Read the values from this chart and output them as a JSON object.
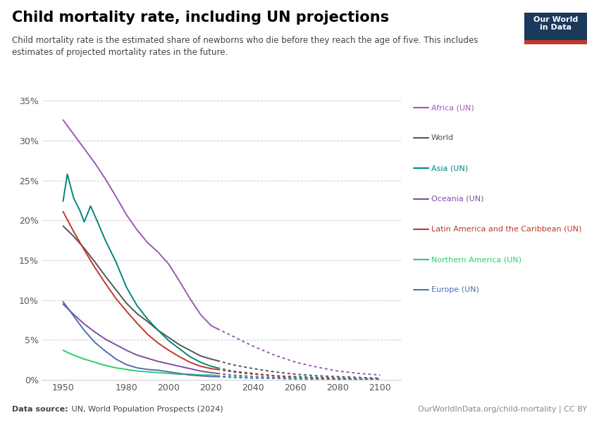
{
  "title": "Child mortality rate, including UN projections",
  "subtitle": "Child mortality rate is the estimated share of newborns who die before they reach the age of five. This includes\nestimates of projected mortality rates in the future.",
  "datasource": "Data source: UN, World Population Prospects (2024)",
  "url": "OurWorldInData.org/child-mortality | CC BY",
  "ylim": [
    0,
    0.36
  ],
  "yticks": [
    0.0,
    0.05,
    0.1,
    0.15,
    0.2,
    0.25,
    0.3,
    0.35
  ],
  "ytick_labels": [
    "0%",
    "5%",
    "10%",
    "15%",
    "20%",
    "25%",
    "30%",
    "35%"
  ],
  "xlim": [
    1940,
    2110
  ],
  "xticks": [
    1950,
    1980,
    2000,
    2020,
    2040,
    2060,
    2080,
    2100
  ],
  "series": [
    {
      "label": "Africa (UN)",
      "color": "#9b59b6",
      "historical": {
        "years": [
          1950,
          1955,
          1960,
          1965,
          1970,
          1975,
          1980,
          1985,
          1990,
          1995,
          2000,
          2005,
          2010,
          2015,
          2020,
          2023
        ],
        "values": [
          0.326,
          0.308,
          0.29,
          0.272,
          0.252,
          0.23,
          0.207,
          0.188,
          0.172,
          0.16,
          0.145,
          0.124,
          0.102,
          0.082,
          0.068,
          0.064
        ]
      },
      "projected": {
        "years": [
          2023,
          2030,
          2040,
          2050,
          2060,
          2070,
          2080,
          2090,
          2100
        ],
        "values": [
          0.064,
          0.055,
          0.042,
          0.031,
          0.022,
          0.016,
          0.011,
          0.008,
          0.006
        ]
      }
    },
    {
      "label": "World",
      "color": "#555555",
      "historical": {
        "years": [
          1950,
          1955,
          1960,
          1965,
          1970,
          1975,
          1980,
          1985,
          1990,
          1995,
          2000,
          2005,
          2010,
          2015,
          2020,
          2023
        ],
        "values": [
          0.193,
          0.18,
          0.165,
          0.148,
          0.13,
          0.113,
          0.096,
          0.083,
          0.073,
          0.062,
          0.053,
          0.044,
          0.037,
          0.03,
          0.026,
          0.024
        ]
      },
      "projected": {
        "years": [
          2023,
          2030,
          2040,
          2050,
          2060,
          2070,
          2080,
          2090,
          2100
        ],
        "values": [
          0.024,
          0.019,
          0.014,
          0.01,
          0.007,
          0.005,
          0.004,
          0.003,
          0.002
        ]
      }
    },
    {
      "label": "Asia (UN)",
      "color": "#00857a",
      "historical": {
        "years": [
          1950,
          1952,
          1955,
          1958,
          1960,
          1963,
          1966,
          1970,
          1975,
          1980,
          1985,
          1990,
          1995,
          2000,
          2005,
          2010,
          2015,
          2020,
          2023
        ],
        "values": [
          0.224,
          0.258,
          0.228,
          0.212,
          0.198,
          0.218,
          0.2,
          0.175,
          0.148,
          0.116,
          0.093,
          0.076,
          0.062,
          0.049,
          0.039,
          0.029,
          0.022,
          0.017,
          0.015
        ]
      },
      "projected": {
        "years": [
          2023,
          2030,
          2040,
          2050,
          2060,
          2070,
          2080,
          2090,
          2100
        ],
        "values": [
          0.015,
          0.011,
          0.008,
          0.005,
          0.004,
          0.003,
          0.002,
          0.001,
          0.001
        ]
      }
    },
    {
      "label": "Oceania (UN)",
      "color": "#7b4fa6",
      "historical": {
        "years": [
          1950,
          1955,
          1960,
          1965,
          1970,
          1975,
          1980,
          1985,
          1990,
          1995,
          2000,
          2005,
          2010,
          2015,
          2020,
          2023
        ],
        "values": [
          0.095,
          0.082,
          0.07,
          0.06,
          0.051,
          0.044,
          0.037,
          0.031,
          0.027,
          0.023,
          0.02,
          0.017,
          0.014,
          0.011,
          0.009,
          0.008
        ]
      },
      "projected": {
        "years": [
          2023,
          2030,
          2040,
          2050,
          2060,
          2070,
          2080,
          2090,
          2100
        ],
        "values": [
          0.008,
          0.006,
          0.004,
          0.003,
          0.002,
          0.002,
          0.001,
          0.001,
          0.001
        ]
      }
    },
    {
      "label": "Latin America and the Caribbean (UN)",
      "color": "#c0392b",
      "historical": {
        "years": [
          1950,
          1955,
          1960,
          1965,
          1970,
          1975,
          1980,
          1985,
          1990,
          1995,
          2000,
          2005,
          2010,
          2015,
          2020,
          2023
        ],
        "values": [
          0.211,
          0.186,
          0.163,
          0.141,
          0.121,
          0.102,
          0.086,
          0.071,
          0.057,
          0.046,
          0.037,
          0.029,
          0.022,
          0.017,
          0.014,
          0.013
        ]
      },
      "projected": {
        "years": [
          2023,
          2030,
          2040,
          2050,
          2060,
          2070,
          2080,
          2090,
          2100
        ],
        "values": [
          0.013,
          0.01,
          0.007,
          0.005,
          0.003,
          0.002,
          0.002,
          0.001,
          0.001
        ]
      }
    },
    {
      "label": "Northern America (UN)",
      "color": "#2ecc71",
      "historical": {
        "years": [
          1950,
          1955,
          1960,
          1965,
          1970,
          1975,
          1980,
          1985,
          1990,
          1995,
          2000,
          2005,
          2010,
          2015,
          2020,
          2023
        ],
        "values": [
          0.037,
          0.031,
          0.026,
          0.022,
          0.018,
          0.015,
          0.013,
          0.011,
          0.01,
          0.009,
          0.008,
          0.007,
          0.007,
          0.006,
          0.006,
          0.005
        ]
      },
      "projected": {
        "years": [
          2023,
          2030,
          2040,
          2050,
          2060,
          2070,
          2080,
          2090,
          2100
        ],
        "values": [
          0.005,
          0.004,
          0.003,
          0.002,
          0.002,
          0.001,
          0.001,
          0.001,
          0.001
        ]
      }
    },
    {
      "label": "Europe (UN)",
      "color": "#4f6fb5",
      "historical": {
        "years": [
          1950,
          1955,
          1960,
          1965,
          1970,
          1975,
          1980,
          1985,
          1990,
          1995,
          2000,
          2005,
          2010,
          2015,
          2020,
          2023
        ],
        "values": [
          0.098,
          0.08,
          0.062,
          0.047,
          0.036,
          0.026,
          0.019,
          0.015,
          0.013,
          0.012,
          0.01,
          0.008,
          0.006,
          0.005,
          0.004,
          0.004
        ]
      },
      "projected": {
        "years": [
          2023,
          2030,
          2040,
          2050,
          2060,
          2070,
          2080,
          2090,
          2100
        ],
        "values": [
          0.004,
          0.003,
          0.002,
          0.002,
          0.001,
          0.001,
          0.001,
          0.001,
          0.001
        ]
      }
    }
  ],
  "owid_box_color": "#1a3a5c",
  "owid_box_accent": "#c0392b",
  "legend_items": [
    {
      "label": "Africa (UN)",
      "color": "#9b59b6"
    },
    {
      "label": "World",
      "color": "#555555"
    },
    {
      "label": "Asia (UN)",
      "color": "#00857a"
    },
    {
      "label": "Oceania (UN)",
      "color": "#7b4fa6"
    },
    {
      "label": "Latin America and the Caribbean (UN)",
      "color": "#c0392b"
    },
    {
      "label": "Northern America (UN)",
      "color": "#2ecc71"
    },
    {
      "label": "Europe (UN)",
      "color": "#4f6fb5"
    }
  ]
}
